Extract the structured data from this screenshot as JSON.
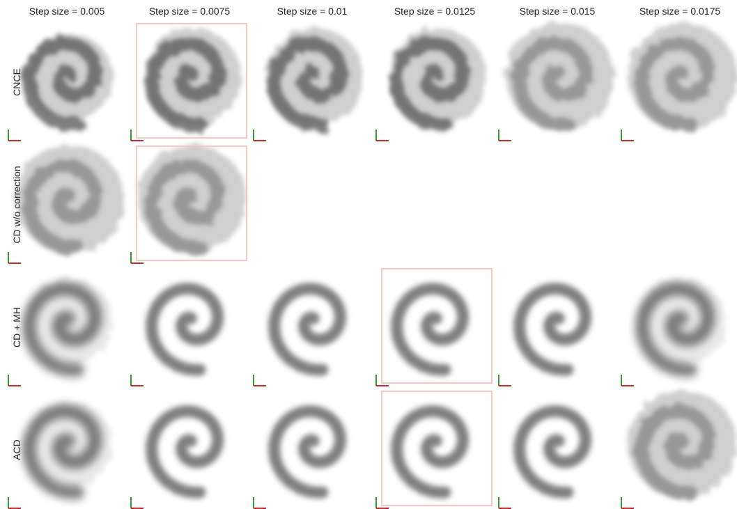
{
  "column_titles": [
    "Step size = 0.005",
    "Step size = 0.0075",
    "Step size = 0.01",
    "Step size = 0.0125",
    "Step size = 0.015",
    "Step size = 0.0175"
  ],
  "row_titles": [
    "CNCE",
    "CD w/o correction",
    "CD + MH",
    "ACD"
  ],
  "panels": [
    {
      "row": 0,
      "col": 0,
      "quality": "scattered",
      "highlighted": false
    },
    {
      "row": 0,
      "col": 1,
      "quality": "streaky",
      "highlighted": true
    },
    {
      "row": 0,
      "col": 2,
      "quality": "streaky",
      "highlighted": false
    },
    {
      "row": 0,
      "col": 3,
      "quality": "streaky",
      "highlighted": false
    },
    {
      "row": 0,
      "col": 4,
      "quality": "very-streaky",
      "highlighted": false
    },
    {
      "row": 0,
      "col": 5,
      "quality": "very-streaky",
      "highlighted": false
    },
    {
      "row": 1,
      "col": 0,
      "quality": "very-streaky",
      "highlighted": false
    },
    {
      "row": 1,
      "col": 1,
      "quality": "very-streaky",
      "highlighted": true
    },
    {
      "row": 2,
      "col": 0,
      "quality": "slight-streaky",
      "highlighted": false
    },
    {
      "row": 2,
      "col": 1,
      "quality": "clean",
      "highlighted": false
    },
    {
      "row": 2,
      "col": 2,
      "quality": "clean",
      "highlighted": false
    },
    {
      "row": 2,
      "col": 3,
      "quality": "clean",
      "highlighted": true
    },
    {
      "row": 2,
      "col": 4,
      "quality": "clean",
      "highlighted": false
    },
    {
      "row": 2,
      "col": 5,
      "quality": "slight-streaky",
      "highlighted": false
    },
    {
      "row": 3,
      "col": 0,
      "quality": "slight-streaky",
      "highlighted": false
    },
    {
      "row": 3,
      "col": 1,
      "quality": "clean",
      "highlighted": false
    },
    {
      "row": 3,
      "col": 2,
      "quality": "clean",
      "highlighted": false
    },
    {
      "row": 3,
      "col": 3,
      "quality": "clean",
      "highlighted": true
    },
    {
      "row": 3,
      "col": 4,
      "quality": "clean",
      "highlighted": false
    },
    {
      "row": 3,
      "col": 5,
      "quality": "very-streaky",
      "highlighted": false
    }
  ],
  "colors": {
    "highlight_box": "#f4c7c3",
    "axis_x": "#d62728",
    "axis_y": "#2ca02c",
    "sample": "#555555"
  }
}
